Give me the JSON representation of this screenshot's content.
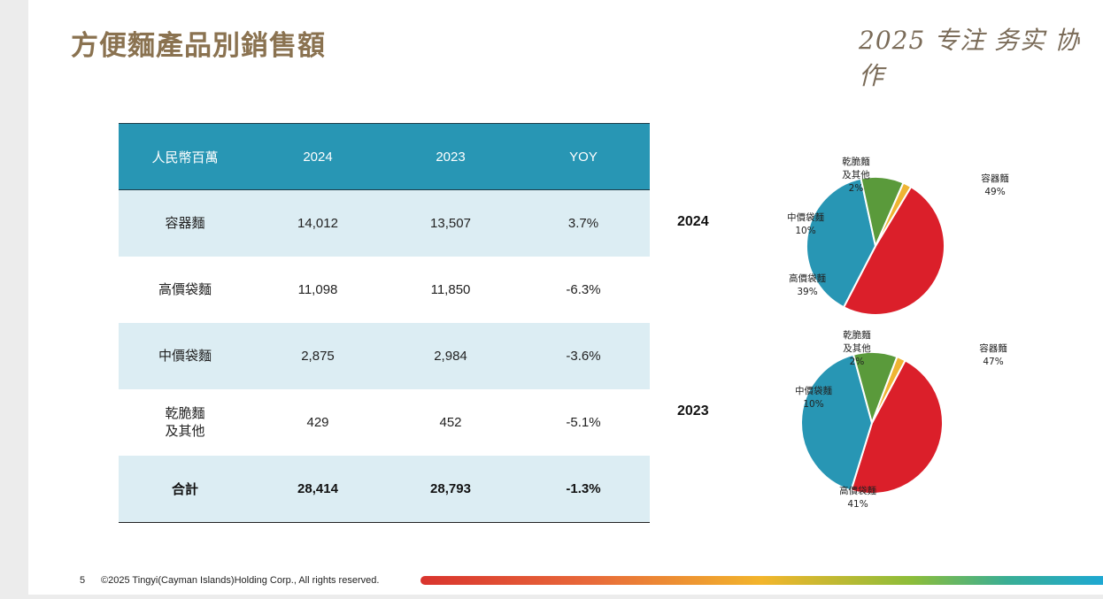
{
  "page": {
    "title": "方便麵產品別銷售額",
    "slogan": "2025 专注 务实 协作",
    "page_number": "5",
    "copyright": "©2025 Tingyi(Cayman Islands)Holding Corp., All rights reserved."
  },
  "table": {
    "headers": [
      "人民幣百萬",
      "2024",
      "2023",
      "YOY"
    ],
    "rows": [
      {
        "category": [
          "容器麵"
        ],
        "y2024": "14,012",
        "y2023": "13,507",
        "yoy": "3.7%"
      },
      {
        "category": [
          "高價袋麵"
        ],
        "y2024": "11,098",
        "y2023": "11,850",
        "yoy": "-6.3%"
      },
      {
        "category": [
          "中價袋麵"
        ],
        "y2024": "2,875",
        "y2023": "2,984",
        "yoy": "-3.6%"
      },
      {
        "category": [
          "乾脆麵",
          "及其他"
        ],
        "y2024": "429",
        "y2023": "452",
        "yoy": "-5.1%"
      }
    ],
    "total": {
      "category": "合計",
      "y2024": "28,414",
      "y2023": "28,793",
      "yoy": "-1.3%"
    }
  },
  "colors": {
    "title": "#8a7250",
    "header_bg": "#2896b4",
    "row_shade": "#dcedf3",
    "slice_container": "#db1f2a",
    "slice_premium": "#2896b4",
    "slice_mid": "#5a9a3b",
    "slice_other": "#eeb433"
  },
  "chart_data": [
    {
      "type": "pie",
      "title": "2024",
      "labels": [
        "容器麵",
        "高價袋麵",
        "中價袋麵",
        "乾脆麵及其他"
      ],
      "label_lines": [
        [
          "容器麵"
        ],
        [
          "高價袋麵"
        ],
        [
          "中價袋麵"
        ],
        [
          "乾脆麵",
          "及其他"
        ]
      ],
      "values": [
        49,
        39,
        10,
        2
      ],
      "value_labels": [
        "49%",
        "39%",
        "10%",
        "2%"
      ],
      "colors": [
        "#db1f2a",
        "#2896b4",
        "#5a9a3b",
        "#eeb433"
      ]
    },
    {
      "type": "pie",
      "title": "2023",
      "labels": [
        "容器麵",
        "高價袋麵",
        "中價袋麵",
        "乾脆麵及其他"
      ],
      "label_lines": [
        [
          "容器麵"
        ],
        [
          "高價袋麵"
        ],
        [
          "中價袋麵"
        ],
        [
          "乾脆麵",
          "及其他"
        ]
      ],
      "values": [
        47,
        41,
        10,
        2
      ],
      "value_labels": [
        "47%",
        "41%",
        "10%",
        "2%"
      ],
      "colors": [
        "#db1f2a",
        "#2896b4",
        "#5a9a3b",
        "#eeb433"
      ]
    }
  ]
}
